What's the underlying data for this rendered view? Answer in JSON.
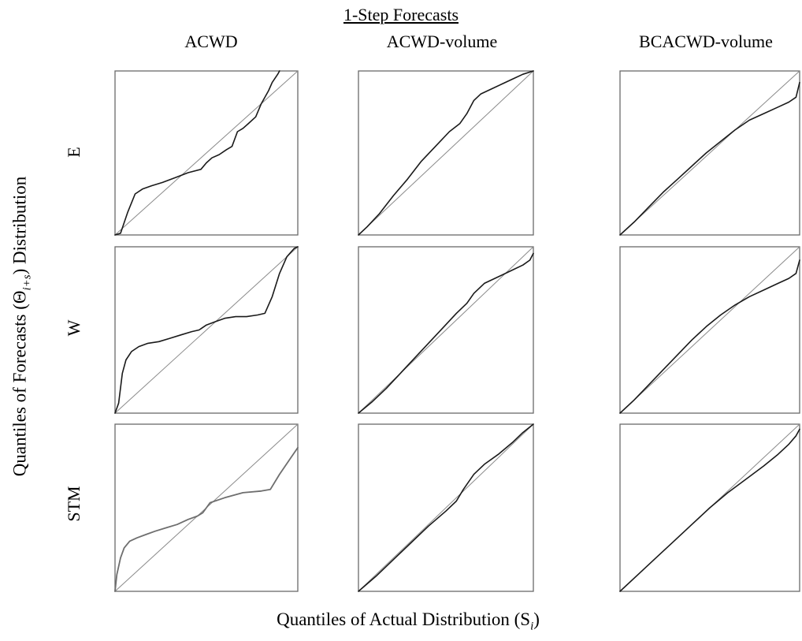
{
  "title": "1-Step Forecasts",
  "xlabel": "Quantiles of Actual Distribution (S",
  "xlabel_sub": "i",
  "xlabel_end": ")",
  "ylabel": "Quantiles of Forecasts (Θ",
  "ylabel_sub": "i+s",
  "ylabel_end": ") Distribution",
  "columns": [
    "ACWD",
    "ACWD-volume",
    "BCACWD-volume"
  ],
  "rows": [
    "E",
    "W",
    "STM"
  ],
  "colors": {
    "curve_dark": "#1a1a1a",
    "curve_light": "#6e6e6e",
    "reference": "#8a8a8a",
    "frame": "#6a6a6a"
  },
  "chart_data": {
    "type": "scatter",
    "description_kind": "qq-plot grid",
    "xlim": [
      0,
      1
    ],
    "ylim": [
      0,
      1
    ],
    "panels": [
      {
        "row": "E",
        "column": "ACWD",
        "x": [
          0.0,
          0.03,
          0.07,
          0.11,
          0.15,
          0.2,
          0.26,
          0.33,
          0.4,
          0.47,
          0.5,
          0.53,
          0.57,
          0.61,
          0.64,
          0.67,
          0.7,
          0.73,
          0.77,
          0.8,
          0.84,
          0.86,
          0.89,
          0.9
        ],
        "y": [
          0.0,
          0.01,
          0.14,
          0.25,
          0.28,
          0.3,
          0.32,
          0.35,
          0.38,
          0.4,
          0.44,
          0.47,
          0.49,
          0.52,
          0.54,
          0.63,
          0.65,
          0.68,
          0.72,
          0.8,
          0.88,
          0.93,
          0.98,
          1.0
        ]
      },
      {
        "row": "E",
        "column": "ACWD-volume",
        "x": [
          0.0,
          0.05,
          0.12,
          0.2,
          0.28,
          0.36,
          0.44,
          0.52,
          0.58,
          0.62,
          0.66,
          0.7,
          0.76,
          0.82,
          0.88,
          0.94,
          1.0
        ],
        "y": [
          0.0,
          0.05,
          0.13,
          0.24,
          0.34,
          0.45,
          0.54,
          0.63,
          0.68,
          0.74,
          0.82,
          0.86,
          0.89,
          0.92,
          0.95,
          0.98,
          1.0
        ]
      },
      {
        "row": "E",
        "column": "BCACWD-volume",
        "x": [
          0.0,
          0.08,
          0.16,
          0.24,
          0.32,
          0.4,
          0.48,
          0.56,
          0.64,
          0.72,
          0.8,
          0.88,
          0.94,
          0.98,
          1.0
        ],
        "y": [
          0.0,
          0.08,
          0.17,
          0.26,
          0.34,
          0.42,
          0.5,
          0.57,
          0.64,
          0.7,
          0.74,
          0.78,
          0.81,
          0.84,
          0.93
        ]
      },
      {
        "row": "W",
        "column": "ACWD",
        "x": [
          0.0,
          0.02,
          0.04,
          0.06,
          0.09,
          0.13,
          0.18,
          0.24,
          0.3,
          0.36,
          0.42,
          0.46,
          0.5,
          0.55,
          0.6,
          0.66,
          0.72,
          0.78,
          0.82,
          0.86,
          0.9,
          0.94,
          0.98,
          1.0
        ],
        "y": [
          0.0,
          0.06,
          0.24,
          0.32,
          0.37,
          0.4,
          0.42,
          0.43,
          0.45,
          0.47,
          0.49,
          0.5,
          0.53,
          0.55,
          0.57,
          0.58,
          0.58,
          0.59,
          0.6,
          0.7,
          0.84,
          0.94,
          0.99,
          1.0
        ]
      },
      {
        "row": "W",
        "column": "ACWD-volume",
        "x": [
          0.0,
          0.08,
          0.16,
          0.24,
          0.32,
          0.4,
          0.48,
          0.56,
          0.62,
          0.66,
          0.72,
          0.8,
          0.88,
          0.94,
          0.98,
          1.0
        ],
        "y": [
          0.0,
          0.07,
          0.15,
          0.24,
          0.33,
          0.42,
          0.51,
          0.6,
          0.66,
          0.72,
          0.78,
          0.82,
          0.86,
          0.89,
          0.92,
          0.96
        ]
      },
      {
        "row": "W",
        "column": "BCACWD-volume",
        "x": [
          0.0,
          0.08,
          0.16,
          0.24,
          0.32,
          0.4,
          0.48,
          0.56,
          0.64,
          0.72,
          0.8,
          0.88,
          0.94,
          0.98,
          1.0
        ],
        "y": [
          0.0,
          0.08,
          0.17,
          0.26,
          0.35,
          0.44,
          0.52,
          0.59,
          0.65,
          0.7,
          0.74,
          0.78,
          0.81,
          0.84,
          0.92
        ]
      },
      {
        "row": "STM",
        "column": "ACWD",
        "x": [
          0.0,
          0.01,
          0.03,
          0.05,
          0.08,
          0.12,
          0.17,
          0.22,
          0.28,
          0.34,
          0.4,
          0.45,
          0.48,
          0.52,
          0.6,
          0.7,
          0.8,
          0.85,
          0.9,
          0.95,
          1.0
        ],
        "y": [
          0.0,
          0.1,
          0.2,
          0.26,
          0.3,
          0.32,
          0.34,
          0.36,
          0.38,
          0.4,
          0.43,
          0.45,
          0.47,
          0.53,
          0.56,
          0.59,
          0.6,
          0.61,
          0.7,
          0.78,
          0.86
        ]
      },
      {
        "row": "STM",
        "column": "ACWD-volume",
        "x": [
          0.0,
          0.1,
          0.2,
          0.3,
          0.4,
          0.5,
          0.56,
          0.6,
          0.66,
          0.72,
          0.8,
          0.88,
          0.94,
          1.0
        ],
        "y": [
          0.0,
          0.09,
          0.19,
          0.29,
          0.39,
          0.48,
          0.54,
          0.61,
          0.7,
          0.76,
          0.82,
          0.89,
          0.95,
          1.0
        ]
      },
      {
        "row": "STM",
        "column": "BCACWD-volume",
        "x": [
          0.0,
          0.1,
          0.2,
          0.3,
          0.4,
          0.5,
          0.6,
          0.7,
          0.8,
          0.88,
          0.94,
          0.98,
          1.0
        ],
        "y": [
          0.0,
          0.1,
          0.2,
          0.3,
          0.4,
          0.5,
          0.59,
          0.67,
          0.75,
          0.82,
          0.88,
          0.93,
          0.97
        ]
      }
    ]
  }
}
